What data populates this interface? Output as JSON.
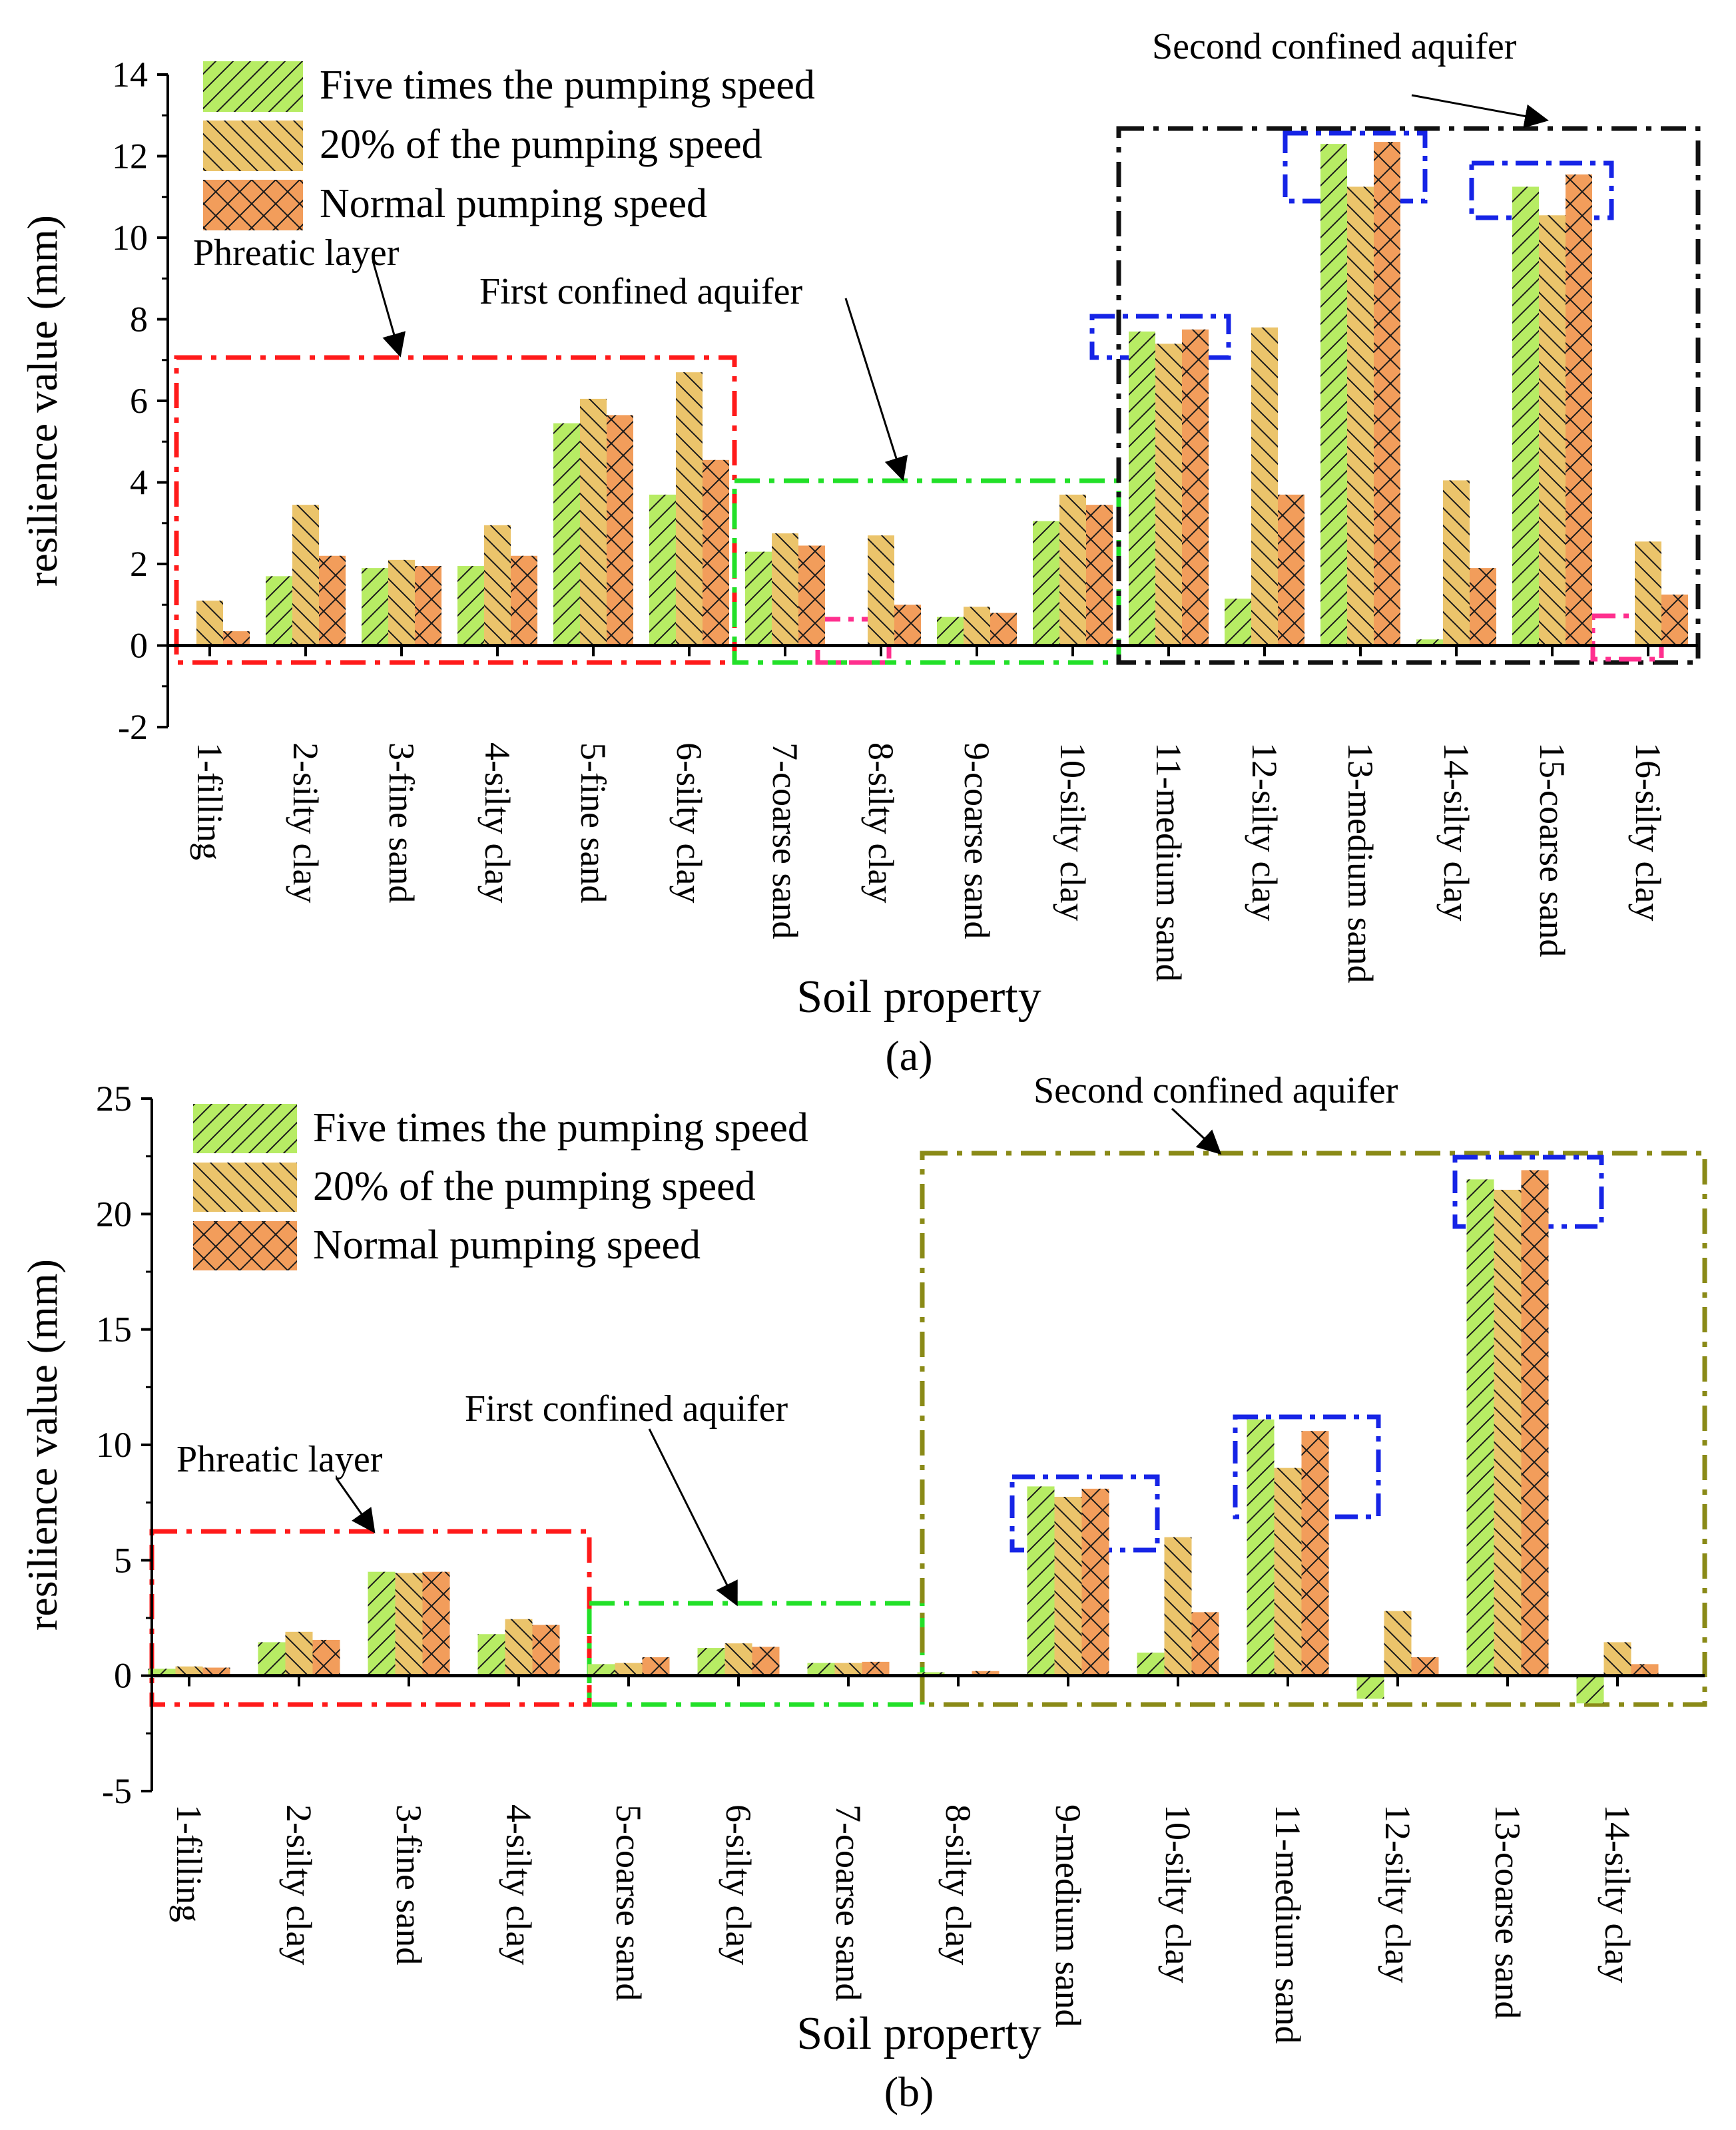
{
  "colors": {
    "five_times": "#b7ec64",
    "twenty_percent": "#ebc46b",
    "normal": "#f29d5b",
    "phreatic_box": "#ff1a1a",
    "first_box": "#22e028",
    "second_box_a": "#111111",
    "second_box_b": "#8a8a17",
    "highlight_blue": "#1624e6",
    "highlight_pink": "#ff2f8e"
  },
  "legend": {
    "five_times": "Five times the pumping speed",
    "twenty_percent": "20% of the pumping speed",
    "normal": "Normal pumping speed"
  },
  "chart_data": [
    {
      "type": "bar",
      "panel_label": "(a)",
      "xlabel": "Soil property",
      "ylabel": "resilience value (mm)",
      "ylim": [
        -2,
        14
      ],
      "yticks": [
        "-2",
        "0",
        "2",
        "4",
        "6",
        "8",
        "10",
        "12",
        "14"
      ],
      "categories": [
        "1-filling",
        "2-silty clay",
        "3-fine sand",
        "4-silty clay",
        "5-fine sand",
        "6-silty clay",
        "7-coarse sand",
        "8-silty clay",
        "9-coarse sand",
        "10-silty clay",
        "11-medium sand",
        "12-silty clay",
        "13-medium sand",
        "14-silty clay",
        "15-coarse sand",
        "16-silty clay"
      ],
      "series": [
        {
          "name": "Five times the pumping speed",
          "key": "five_times",
          "values": [
            0.0,
            1.7,
            1.9,
            1.95,
            5.45,
            3.7,
            2.3,
            0.0,
            0.7,
            3.05,
            7.7,
            1.15,
            12.3,
            0.15,
            11.25,
            0.0
          ]
        },
        {
          "name": "20% of the pumping speed",
          "key": "twenty_percent",
          "values": [
            1.1,
            3.45,
            2.1,
            2.95,
            6.05,
            6.7,
            2.75,
            2.7,
            0.95,
            3.7,
            7.4,
            7.8,
            11.25,
            4.05,
            10.55,
            2.55
          ]
        },
        {
          "name": "Normal pumping speed",
          "key": "normal",
          "values": [
            0.35,
            2.2,
            1.95,
            2.2,
            5.65,
            4.55,
            2.45,
            1.0,
            0.8,
            3.45,
            7.75,
            3.7,
            12.35,
            1.9,
            11.55,
            1.25
          ]
        }
      ],
      "annotations": {
        "phreatic": "Phreatic layer",
        "first": "First confined aquifer",
        "second": "Second confined aquifer"
      },
      "grid": false,
      "legend_position": "top-left"
    },
    {
      "type": "bar",
      "panel_label": "(b)",
      "xlabel": "Soil property",
      "ylabel": "resilience value (mm)",
      "ylim": [
        -5,
        25
      ],
      "yticks": [
        "-5",
        "0",
        "5",
        "10",
        "15",
        "20",
        "25"
      ],
      "categories": [
        "1-filling",
        "2-silty clay",
        "3-fine sand",
        "4-silty clay",
        "5-coarse sand",
        "6-silty clay",
        "7-coarse sand",
        "8-silty clay",
        "9-medium sand",
        "10-silty clay",
        "11-medium sand",
        "12-silty clay",
        "13-coarse sand",
        "14-silty clay"
      ],
      "series": [
        {
          "name": "Five times the pumping speed",
          "key": "five_times",
          "values": [
            0.3,
            1.45,
            4.5,
            1.8,
            0.5,
            1.2,
            0.55,
            0.15,
            8.2,
            1.0,
            11.1,
            -1.0,
            21.5,
            -1.2
          ]
        },
        {
          "name": "20% of the pumping speed",
          "key": "twenty_percent",
          "values": [
            0.4,
            1.9,
            4.45,
            2.45,
            0.55,
            1.4,
            0.55,
            0.05,
            7.75,
            6.0,
            9.0,
            2.8,
            21.05,
            1.45
          ]
        },
        {
          "name": "Normal pumping speed",
          "key": "normal",
          "values": [
            0.35,
            1.55,
            4.5,
            2.2,
            0.8,
            1.25,
            0.6,
            0.2,
            8.1,
            2.75,
            10.6,
            0.8,
            21.9,
            0.5
          ]
        }
      ],
      "annotations": {
        "phreatic": "Phreatic layer",
        "first": "First confined aquifer",
        "second": "Second confined aquifer"
      },
      "grid": false,
      "legend_position": "top-left"
    }
  ]
}
